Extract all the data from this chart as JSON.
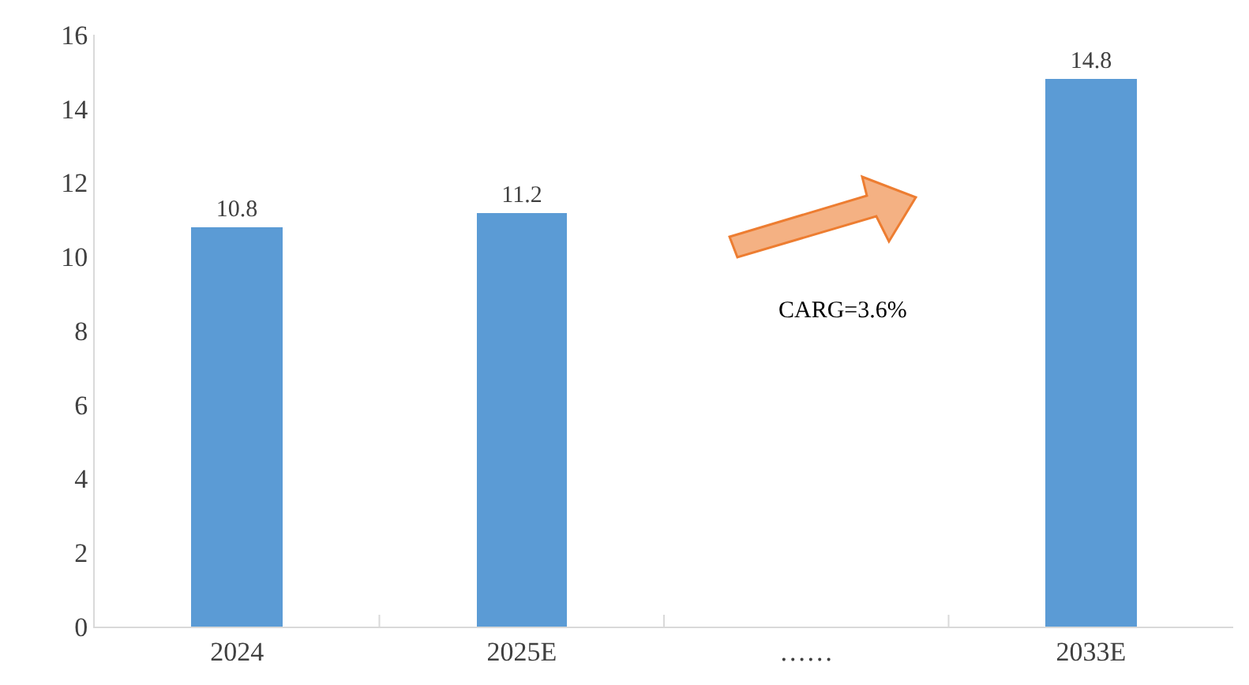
{
  "chart_data": {
    "type": "bar",
    "categories": [
      "2024",
      "2025E",
      "……",
      "2033E"
    ],
    "values": [
      10.8,
      11.2,
      null,
      14.8
    ],
    "color": "#5b9bd5",
    "ylim": [
      0,
      16
    ],
    "yticks": [
      0,
      2,
      4,
      6,
      8,
      10,
      12,
      14,
      16
    ],
    "data_labels": true,
    "annotations": [
      "CARG=3.6%"
    ]
  }
}
